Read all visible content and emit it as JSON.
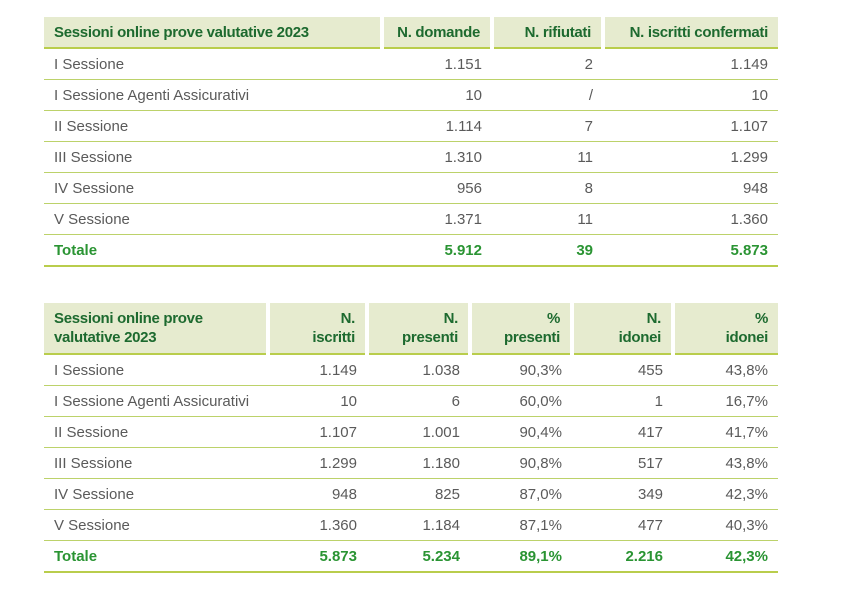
{
  "table1": {
    "headers": [
      "Sessioni online prove valutative 2023",
      "N. domande",
      "N. rifiutati",
      "N. iscritti confermati"
    ],
    "rows": [
      [
        "I Sessione",
        "1.151",
        "2",
        "1.149"
      ],
      [
        "I Sessione Agenti Assicurativi",
        "10",
        "/",
        "10"
      ],
      [
        "II Sessione",
        "1.114",
        "7",
        "1.107"
      ],
      [
        "III Sessione",
        "1.310",
        "11",
        "1.299"
      ],
      [
        "IV Sessione",
        "956",
        "8",
        "948"
      ],
      [
        "V Sessione",
        "1.371",
        "11",
        "1.360"
      ]
    ],
    "total": [
      "Totale",
      "5.912",
      "39",
      "5.873"
    ]
  },
  "table2": {
    "headers": [
      [
        "Sessioni online prove",
        "valutative 2023"
      ],
      [
        "N.",
        "iscritti"
      ],
      [
        "N.",
        "presenti"
      ],
      [
        "%",
        "presenti"
      ],
      [
        "N.",
        "idonei"
      ],
      [
        "%",
        "idonei"
      ]
    ],
    "rows": [
      [
        "I Sessione",
        "1.149",
        "1.038",
        "90,3%",
        "455",
        "43,8%"
      ],
      [
        "I Sessione Agenti Assicurativi",
        "10",
        "6",
        "60,0%",
        "1",
        "16,7%"
      ],
      [
        "II Sessione",
        "1.107",
        "1.001",
        "90,4%",
        "417",
        "41,7%"
      ],
      [
        "III Sessione",
        "1.299",
        "1.180",
        "90,8%",
        "517",
        "43,8%"
      ],
      [
        "IV Sessione",
        "948",
        "825",
        "87,0%",
        "349",
        "42,3%"
      ],
      [
        "V Sessione",
        "1.360",
        "1.184",
        "87,1%",
        "477",
        "40,3%"
      ]
    ],
    "total": [
      "Totale",
      "5.873",
      "5.234",
      "89,1%",
      "2.216",
      "42,3%"
    ]
  }
}
